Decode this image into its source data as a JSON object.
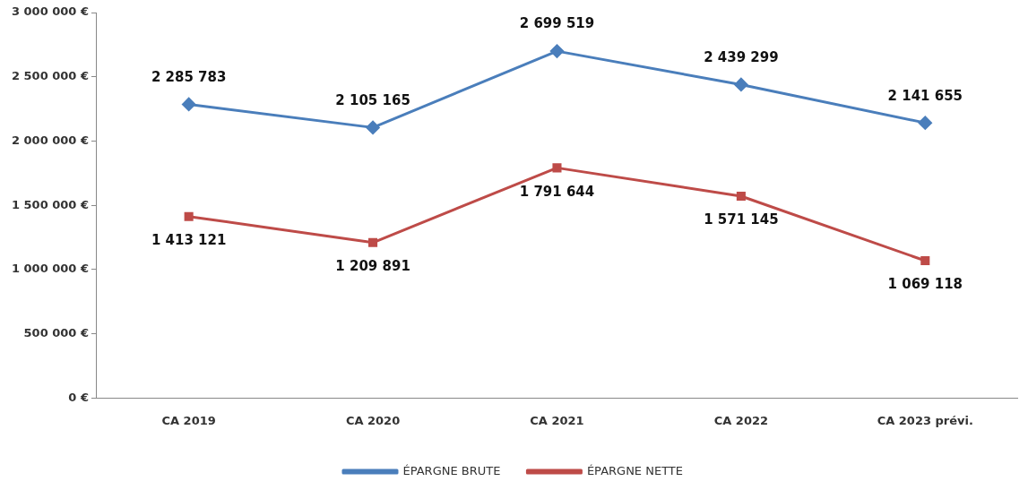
{
  "chart_data": {
    "type": "line",
    "categories": [
      "CA 2019",
      "CA 2020",
      "CA 2021",
      "CA 2022",
      "CA 2023 prévi."
    ],
    "series": [
      {
        "name": "ÉPARGNE BRUTE",
        "color": "#4a7ebb",
        "marker": "diamond",
        "values": [
          2285783,
          2105165,
          2699519,
          2439299,
          2141655
        ],
        "value_labels": [
          "2 285 783",
          "2 105 165",
          "2 699 519",
          "2 439 299",
          "2 141 655"
        ]
      },
      {
        "name": "ÉPARGNE NETTE",
        "color": "#be4b48",
        "marker": "square",
        "values": [
          1413121,
          1209891,
          1791644,
          1571145,
          1069118
        ],
        "value_labels": [
          "1 413 121",
          "1 209 891",
          "1 791 644",
          "1 571 145",
          "1 069 118"
        ]
      }
    ],
    "ylim": [
      0,
      3000000
    ],
    "yticks": [
      {
        "value": 0,
        "label": "0 €"
      },
      {
        "value": 500000,
        "label": "500 000 €"
      },
      {
        "value": 1000000,
        "label": "1 000 000 €"
      },
      {
        "value": 1500000,
        "label": "1 500 000 €"
      },
      {
        "value": 2000000,
        "label": "2 000 000 €"
      },
      {
        "value": 2500000,
        "label": "2 500 000 €"
      },
      {
        "value": 3000000,
        "label": "3 000 000 €"
      }
    ],
    "grid": false,
    "legend": "bottom",
    "line_style": "solid"
  }
}
